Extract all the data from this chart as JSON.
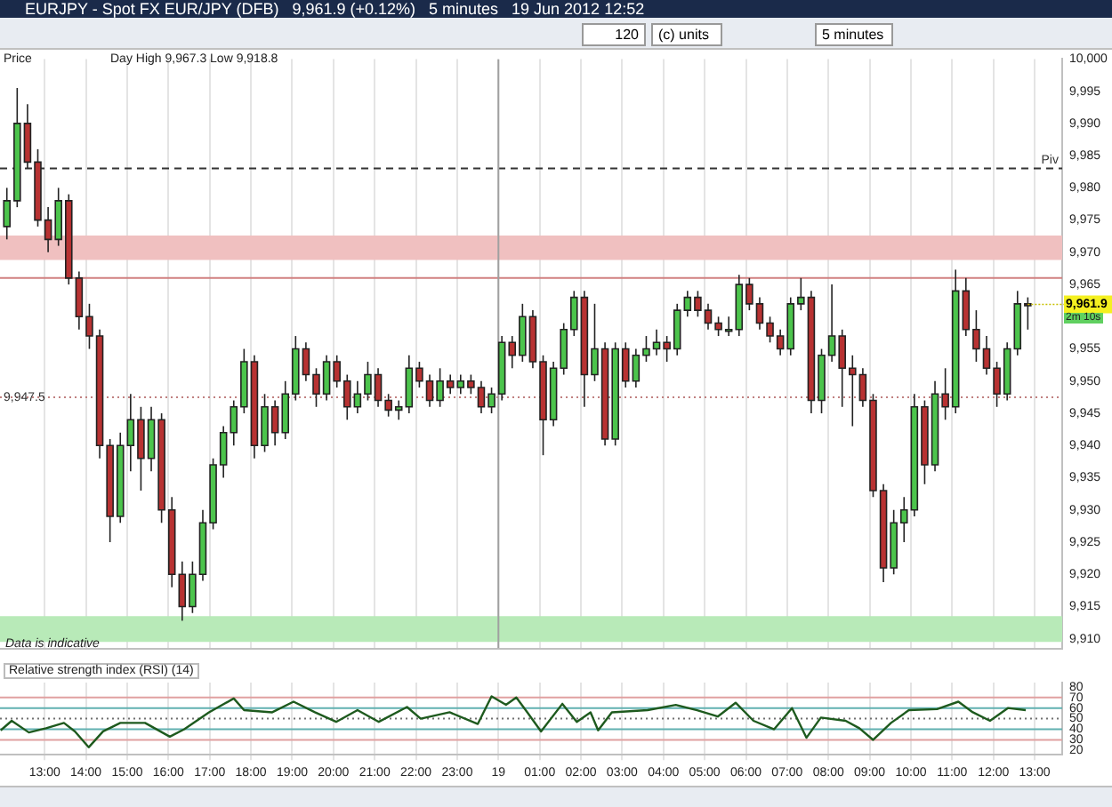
{
  "chart_data": [
    {
      "type": "candlestick",
      "title": "EURJPY - Spot FX EUR/JPY (DFB)   9,961.9 (+0.12%)   5 minutes   19 Jun 2012 12:52",
      "annotations": [
        "Price",
        "Day High 9,967.3 Low 9,918.8",
        "Data is indicative",
        {
          "text": "9,961.9",
          "x": "2012-06-19T12:50",
          "y": 9961.9
        },
        "2m 10s",
        "120",
        "(c) units",
        "5 minutes"
      ],
      "x": [
        "2012-06-18T12:05",
        "2012-06-18T12:20",
        "2012-06-18T12:35",
        "2012-06-18T12:50",
        "2012-06-18T13:05",
        "2012-06-18T13:20",
        "2012-06-18T13:35",
        "2012-06-18T13:50",
        "2012-06-18T14:05",
        "2012-06-18T14:20",
        "2012-06-18T14:35",
        "2012-06-18T14:50",
        "2012-06-18T15:05",
        "2012-06-18T15:20",
        "2012-06-18T15:35",
        "2012-06-18T15:50",
        "2012-06-18T16:05",
        "2012-06-18T16:20",
        "2012-06-18T16:35",
        "2012-06-18T16:50",
        "2012-06-18T17:05",
        "2012-06-18T17:20",
        "2012-06-18T17:35",
        "2012-06-18T17:50",
        "2012-06-18T18:05",
        "2012-06-18T18:20",
        "2012-06-18T18:35",
        "2012-06-18T18:50",
        "2012-06-18T19:05",
        "2012-06-18T19:20",
        "2012-06-18T19:35",
        "2012-06-18T19:50",
        "2012-06-18T20:05",
        "2012-06-18T20:20",
        "2012-06-18T20:35",
        "2012-06-18T20:50",
        "2012-06-18T21:05",
        "2012-06-18T21:20",
        "2012-06-18T21:35",
        "2012-06-18T21:50",
        "2012-06-18T22:05",
        "2012-06-18T22:20",
        "2012-06-18T22:35",
        "2012-06-18T22:50",
        "2012-06-18T23:05",
        "2012-06-18T23:20",
        "2012-06-18T23:35",
        "2012-06-18T23:50",
        "2012-06-19T00:05",
        "2012-06-19T00:20",
        "2012-06-19T00:35",
        "2012-06-19T00:50",
        "2012-06-19T01:05",
        "2012-06-19T01:20",
        "2012-06-19T01:35",
        "2012-06-19T01:50",
        "2012-06-19T02:05",
        "2012-06-19T02:20",
        "2012-06-19T02:35",
        "2012-06-19T02:50",
        "2012-06-19T03:05",
        "2012-06-19T03:20",
        "2012-06-19T03:35",
        "2012-06-19T03:50",
        "2012-06-19T04:05",
        "2012-06-19T04:20",
        "2012-06-19T04:35",
        "2012-06-19T04:50",
        "2012-06-19T05:05",
        "2012-06-19T05:20",
        "2012-06-19T05:35",
        "2012-06-19T05:50",
        "2012-06-19T06:05",
        "2012-06-19T06:20",
        "2012-06-19T06:35",
        "2012-06-19T06:50",
        "2012-06-19T07:05",
        "2012-06-19T07:20",
        "2012-06-19T07:35",
        "2012-06-19T07:50",
        "2012-06-19T08:05",
        "2012-06-19T08:20",
        "2012-06-19T08:35",
        "2012-06-19T08:50",
        "2012-06-19T09:05",
        "2012-06-19T09:20",
        "2012-06-19T09:35",
        "2012-06-19T09:50",
        "2012-06-19T10:05",
        "2012-06-19T10:20",
        "2012-06-19T10:35",
        "2012-06-19T10:50",
        "2012-06-19T11:05",
        "2012-06-19T11:20",
        "2012-06-19T11:35",
        "2012-06-19T11:50",
        "2012-06-19T12:05",
        "2012-06-19T12:20",
        "2012-06-19T12:35",
        "2012-06-19T12:50"
      ],
      "ohlc": [
        [
          9974,
          9980,
          9972,
          9978
        ],
        [
          9978,
          9995.5,
          9977,
          9990
        ],
        [
          9990,
          9993,
          9983,
          9984
        ],
        [
          9984,
          9986,
          9974,
          9975
        ],
        [
          9975,
          9977,
          9970,
          9972
        ],
        [
          9972,
          9980,
          9971,
          9978
        ],
        [
          9978,
          9979,
          9965,
          9966
        ],
        [
          9966,
          9967,
          9958,
          9960
        ],
        [
          9960,
          9962,
          9955,
          9957
        ],
        [
          9957,
          9958,
          9938,
          9940
        ],
        [
          9940,
          9941,
          9925,
          9929
        ],
        [
          9929,
          9942,
          9928,
          9940
        ],
        [
          9940,
          9948,
          9936,
          9944
        ],
        [
          9944,
          9946,
          9933,
          9938
        ],
        [
          9938,
          9946,
          9936,
          9944
        ],
        [
          9944,
          9945,
          9928,
          9930
        ],
        [
          9930,
          9932,
          9918,
          9920
        ],
        [
          9920,
          9922,
          9912.8,
          9915
        ],
        [
          9915,
          9922,
          9914,
          9920
        ],
        [
          9920,
          9930,
          9919,
          9928
        ],
        [
          9928,
          9938,
          9927,
          9937
        ],
        [
          9937,
          9943,
          9935,
          9942
        ],
        [
          9942,
          9947,
          9940,
          9946
        ],
        [
          9946,
          9955,
          9945,
          9953
        ],
        [
          9953,
          9954,
          9938,
          9940
        ],
        [
          9940,
          9948,
          9939,
          9946
        ],
        [
          9946,
          9947,
          9940,
          9942
        ],
        [
          9942,
          9950,
          9941,
          9948
        ],
        [
          9948,
          9957,
          9947,
          9955
        ],
        [
          9955,
          9956,
          9950,
          9951
        ],
        [
          9951,
          9952,
          9946,
          9948
        ],
        [
          9948,
          9954,
          9947,
          9953
        ],
        [
          9953,
          9954,
          9949,
          9950
        ],
        [
          9950,
          9951,
          9944,
          9946
        ],
        [
          9946,
          9950,
          9945,
          9948
        ],
        [
          9948,
          9953,
          9947,
          9951
        ],
        [
          9951,
          9952,
          9946,
          9947
        ],
        [
          9947,
          9948,
          9944.5,
          9945.5
        ],
        [
          9945.5,
          9947,
          9944,
          9946
        ],
        [
          9946,
          9954,
          9945,
          9952
        ],
        [
          9952,
          9953,
          9949,
          9950
        ],
        [
          9950,
          9951,
          9946,
          9947
        ],
        [
          9947,
          9952,
          9946,
          9950
        ],
        [
          9950,
          9951,
          9948,
          9949
        ],
        [
          9949,
          9951,
          9948,
          9950
        ],
        [
          9950,
          9951,
          9948,
          9949
        ],
        [
          9949,
          9950,
          9945,
          9946
        ],
        [
          9946,
          9949,
          9945,
          9948
        ],
        [
          9948,
          9957,
          9947,
          9956
        ],
        [
          9956,
          9957,
          9952,
          9954
        ],
        [
          9954,
          9962,
          9953,
          9960
        ],
        [
          9960,
          9961,
          9952,
          9953
        ],
        [
          9953,
          9954,
          9938.5,
          9944
        ],
        [
          9944,
          9953,
          9943,
          9952
        ],
        [
          9952,
          9959,
          9951,
          9958
        ],
        [
          9958,
          9964,
          9957,
          9963
        ],
        [
          9963,
          9964,
          9946,
          9951
        ],
        [
          9951,
          9962,
          9950,
          9955
        ],
        [
          9955,
          9956,
          9940,
          9941
        ],
        [
          9941,
          9956,
          9940,
          9955
        ],
        [
          9955,
          9956,
          9949,
          9950
        ],
        [
          9950,
          9955,
          9949,
          9954
        ],
        [
          9954,
          9957,
          9953,
          9955
        ],
        [
          9955,
          9958,
          9954,
          9956
        ],
        [
          9956,
          9957,
          9953,
          9955
        ],
        [
          9955,
          9962,
          9954,
          9961
        ],
        [
          9961,
          9964,
          9960,
          9963
        ],
        [
          9963,
          9964,
          9960,
          9961
        ],
        [
          9961,
          9962,
          9958,
          9959
        ],
        [
          9959,
          9960,
          9957,
          9958
        ],
        [
          9958,
          9960,
          9957,
          9958
        ],
        [
          9958,
          9966.5,
          9957,
          9965
        ],
        [
          9965,
          9966,
          9961,
          9962
        ],
        [
          9962,
          9963,
          9958,
          9959
        ],
        [
          9959,
          9960,
          9956,
          9957
        ],
        [
          9957,
          9958,
          9954,
          9955
        ],
        [
          9955,
          9963,
          9954,
          9962
        ],
        [
          9962,
          9966,
          9961,
          9963
        ],
        [
          9963,
          9964,
          9945,
          9947
        ],
        [
          9947,
          9955,
          9945,
          9954
        ],
        [
          9954,
          9965,
          9953,
          9957
        ],
        [
          9957,
          9958,
          9946,
          9952
        ],
        [
          9952,
          9954,
          9943,
          9951
        ],
        [
          9951,
          9952,
          9946,
          9947
        ],
        [
          9947,
          9948,
          9932,
          9933
        ],
        [
          9933,
          9934,
          9918.8,
          9921
        ],
        [
          9921,
          9930,
          9920,
          9928
        ],
        [
          9928,
          9932,
          9925,
          9930
        ],
        [
          9930,
          9948,
          9929,
          9946
        ],
        [
          9946,
          9947,
          9934,
          9937
        ],
        [
          9937,
          9950,
          9936,
          9948
        ],
        [
          9948,
          9952,
          9944,
          9946
        ],
        [
          9946,
          9967.3,
          9945,
          9964
        ],
        [
          9964,
          9966,
          9957,
          9958
        ],
        [
          9958,
          9961,
          9953,
          9955
        ],
        [
          9955,
          9957,
          9951,
          9952
        ],
        [
          9952,
          9953,
          9946,
          9948
        ],
        [
          9948,
          9956,
          9947,
          9955
        ],
        [
          9955,
          9964,
          9954,
          9962
        ],
        [
          9962,
          9963,
          9958,
          9961.9
        ]
      ],
      "xlim": [
        "2012-06-18T11:55",
        "2012-06-19T13:40"
      ],
      "xticks": [
        {
          "value": "2012-06-18T13:00",
          "label": null
        },
        {
          "value": "2012-06-18T14:00",
          "label": null
        },
        {
          "value": "2012-06-18T15:00",
          "label": null
        },
        {
          "value": "2012-06-18T16:00",
          "label": null
        },
        {
          "value": "2012-06-18T17:00",
          "label": null
        },
        {
          "value": "2012-06-18T18:00",
          "label": null
        },
        {
          "value": "2012-06-18T19:00",
          "label": null
        },
        {
          "value": "2012-06-18T20:00",
          "label": null
        },
        {
          "value": "2012-06-18T21:00",
          "label": null
        },
        {
          "value": "2012-06-18T22:00",
          "label": null
        },
        {
          "value": "2012-06-18T23:00",
          "label": null
        },
        {
          "value": "2012-06-19T00:00",
          "label": null
        },
        {
          "value": "2012-06-19T01:00",
          "label": null
        },
        {
          "value": "2012-06-19T02:00",
          "label": null
        },
        {
          "value": "2012-06-19T03:00",
          "label": null
        },
        {
          "value": "2012-06-19T04:00",
          "label": null
        },
        {
          "value": "2012-06-19T05:00",
          "label": null
        },
        {
          "value": "2012-06-19T06:00",
          "label": null
        },
        {
          "value": "2012-06-19T07:00",
          "label": null
        },
        {
          "value": "2012-06-19T08:00",
          "label": null
        },
        {
          "value": "2012-06-19T09:00",
          "label": null
        },
        {
          "value": "2012-06-19T10:00",
          "label": null
        },
        {
          "value": "2012-06-19T11:00",
          "label": null
        },
        {
          "value": "2012-06-19T12:00",
          "label": null
        },
        {
          "value": "2012-06-19T13:00",
          "label": null
        }
      ],
      "ylim": [
        9908.5,
        10000
      ],
      "yticks": [
        {
          "value": 9910,
          "label": "9,910"
        },
        {
          "value": 9915,
          "label": "9,915"
        },
        {
          "value": 9920,
          "label": "9,920"
        },
        {
          "value": 9925,
          "label": "9,925"
        },
        {
          "value": 9930,
          "label": "9,930"
        },
        {
          "value": 9935,
          "label": "9,935"
        },
        {
          "value": 9940,
          "label": "9,940"
        },
        {
          "value": 9945,
          "label": "9,945"
        },
        {
          "value": 9950,
          "label": "9,950"
        },
        {
          "value": 9955,
          "label": "9,955"
        },
        {
          "value": 9965,
          "label": "9,965"
        },
        {
          "value": 9970,
          "label": "9,970"
        },
        {
          "value": 9975,
          "label": "9,975"
        },
        {
          "value": 9980,
          "label": "9,980"
        },
        {
          "value": 9985,
          "label": "9,985"
        },
        {
          "value": 9990,
          "label": "9,990"
        },
        {
          "value": 9995,
          "label": "9,995"
        },
        {
          "value": 10000,
          "label": "10,000"
        }
      ],
      "tick_labels": "y",
      "grid": "x",
      "ref_lines": [
        {
          "axis": "y",
          "value": 9947.5,
          "label": "9,947.5",
          "color": "#c08080",
          "line_style": "dotted"
        },
        {
          "axis": "y",
          "value": 9983,
          "label": "Piv",
          "color": "#333333",
          "line_style": "dashed"
        },
        {
          "axis": "y",
          "value": 9966,
          "color": "#d08080",
          "line_style": "solid"
        },
        {
          "axis": "x",
          "value": "2012-06-19T00:00",
          "color": "#a0a0a0",
          "line_style": "solid"
        }
      ],
      "bands": [
        {
          "axis": "y",
          "from": 9968.8,
          "to": 9972.6,
          "color": "#f0c0c0"
        },
        {
          "axis": "y",
          "from": 9909.5,
          "to": 9913.5,
          "color": "#b8eab8"
        }
      ]
    },
    {
      "type": "line",
      "title": "Relative strength index (RSI) (14)",
      "x": [
        "2012-06-18T11:56",
        "2012-06-18T12:12",
        "2012-06-18T12:37",
        "2012-06-18T13:02",
        "2012-06-18T13:28",
        "2012-06-18T13:44",
        "2012-06-18T14:04",
        "2012-06-18T14:25",
        "2012-06-18T14:50",
        "2012-06-18T15:26",
        "2012-06-18T16:02",
        "2012-06-18T16:23",
        "2012-06-18T16:59",
        "2012-06-18T17:35",
        "2012-06-18T17:50",
        "2012-06-18T18:31",
        "2012-06-18T19:02",
        "2012-06-18T19:33",
        "2012-06-18T20:04",
        "2012-06-18T20:35",
        "2012-06-18T21:06",
        "2012-06-18T21:47",
        "2012-06-18T22:07",
        "2012-06-18T22:49",
        "2012-06-18T23:30",
        "2012-06-18T23:50",
        "2012-06-19T00:11",
        "2012-06-19T00:26",
        "2012-06-19T00:42",
        "2012-06-19T01:02",
        "2012-06-19T01:33",
        "2012-06-19T01:54",
        "2012-06-19T02:14",
        "2012-06-19T02:25",
        "2012-06-19T02:45",
        "2012-06-19T03:37",
        "2012-06-19T04:18",
        "2012-06-19T04:49",
        "2012-06-19T05:19",
        "2012-06-19T05:45",
        "2012-06-19T06:11",
        "2012-06-19T06:41",
        "2012-06-19T07:07",
        "2012-06-19T07:28",
        "2012-06-19T07:49",
        "2012-06-19T08:25",
        "2012-06-19T08:45",
        "2012-06-19T09:05",
        "2012-06-19T09:31",
        "2012-06-19T09:57",
        "2012-06-19T10:38",
        "2012-06-19T11:09",
        "2012-06-19T11:30",
        "2012-06-19T11:55",
        "2012-06-19T12:21",
        "2012-06-19T12:47"
      ],
      "series": [
        {
          "color": "#1e5a1e",
          "values": [
            39,
            48,
            37,
            41,
            46,
            38,
            23,
            38,
            46,
            46,
            33,
            40,
            56,
            69,
            58,
            56,
            66,
            56,
            47,
            58,
            47,
            61,
            50,
            56,
            45,
            71,
            63,
            70,
            56,
            38,
            64,
            47,
            56,
            39,
            56,
            58,
            63,
            58,
            52,
            65,
            48,
            40,
            60,
            32,
            51,
            48,
            41,
            30,
            46,
            58,
            59,
            66,
            56,
            48,
            60,
            58
          ]
        }
      ],
      "xlim": [
        "2012-06-18T11:55",
        "2012-06-19T13:40"
      ],
      "xticks": [
        {
          "value": "2012-06-18T13:00",
          "label": "13:00"
        },
        {
          "value": "2012-06-18T14:00",
          "label": "14:00"
        },
        {
          "value": "2012-06-18T15:00",
          "label": "15:00"
        },
        {
          "value": "2012-06-18T16:00",
          "label": "16:00"
        },
        {
          "value": "2012-06-18T17:00",
          "label": "17:00"
        },
        {
          "value": "2012-06-18T18:00",
          "label": "18:00"
        },
        {
          "value": "2012-06-18T19:00",
          "label": "19:00"
        },
        {
          "value": "2012-06-18T20:00",
          "label": "20:00"
        },
        {
          "value": "2012-06-18T21:00",
          "label": "21:00"
        },
        {
          "value": "2012-06-18T22:00",
          "label": "22:00"
        },
        {
          "value": "2012-06-18T23:00",
          "label": "23:00"
        },
        {
          "value": "2012-06-19T00:00",
          "label": "19"
        },
        {
          "value": "2012-06-19T01:00",
          "label": "01:00"
        },
        {
          "value": "2012-06-19T02:00",
          "label": "02:00"
        },
        {
          "value": "2012-06-19T03:00",
          "label": "03:00"
        },
        {
          "value": "2012-06-19T04:00",
          "label": "04:00"
        },
        {
          "value": "2012-06-19T05:00",
          "label": "05:00"
        },
        {
          "value": "2012-06-19T06:00",
          "label": "06:00"
        },
        {
          "value": "2012-06-19T07:00",
          "label": "07:00"
        },
        {
          "value": "2012-06-19T08:00",
          "label": "08:00"
        },
        {
          "value": "2012-06-19T09:00",
          "label": "09:00"
        },
        {
          "value": "2012-06-19T10:00",
          "label": "10:00"
        },
        {
          "value": "2012-06-19T11:00",
          "label": "11:00"
        },
        {
          "value": "2012-06-19T12:00",
          "label": "12:00"
        },
        {
          "value": "2012-06-19T13:00",
          "label": "13:00"
        }
      ],
      "ylim": [
        16,
        84
      ],
      "yticks": [
        20,
        30,
        40,
        50,
        60,
        70,
        80
      ],
      "grid": "x",
      "ref_lines": [
        {
          "axis": "y",
          "value": 70,
          "color": "#e0a0a0",
          "line_style": "solid"
        },
        {
          "axis": "y",
          "value": 60,
          "color": "#60b0b0",
          "line_style": "solid"
        },
        {
          "axis": "y",
          "value": 50,
          "color": "#707070",
          "line_style": "dotted"
        },
        {
          "axis": "y",
          "value": 40,
          "color": "#60b0b0",
          "line_style": "solid"
        },
        {
          "axis": "y",
          "value": 30,
          "color": "#e0a0a0",
          "line_style": "solid"
        }
      ]
    }
  ]
}
